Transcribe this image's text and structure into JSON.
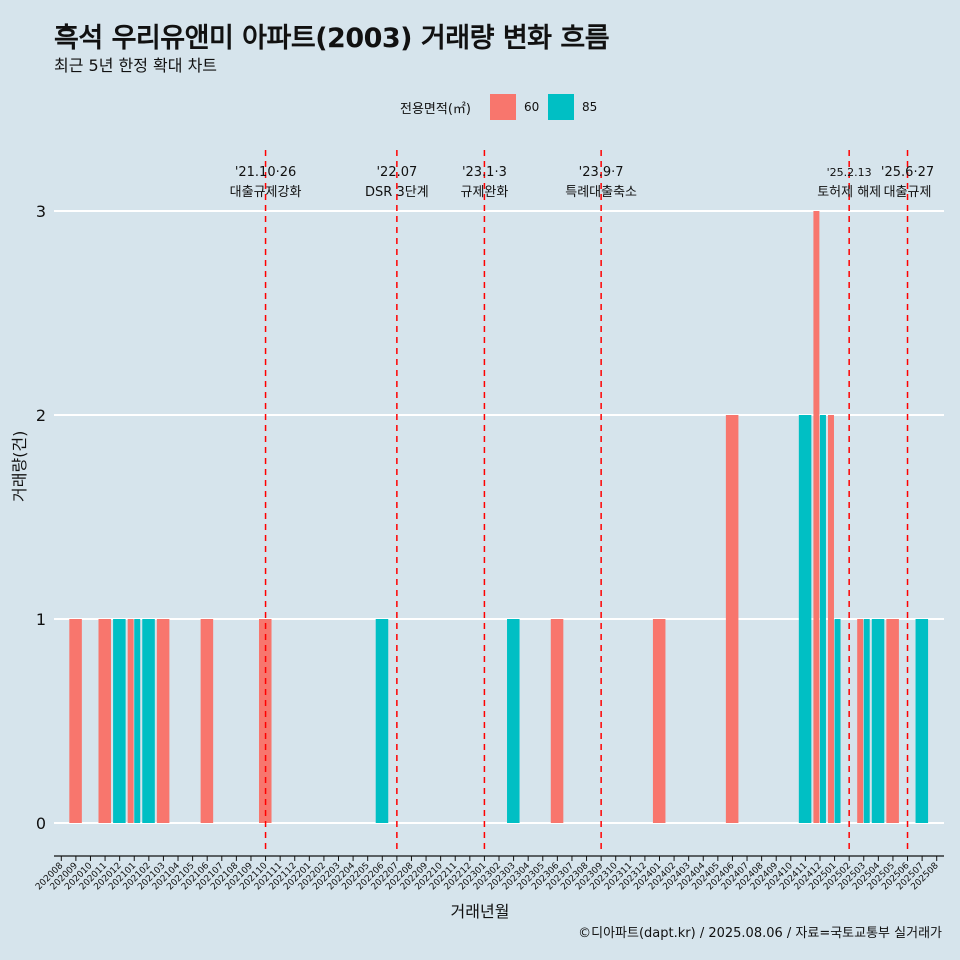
{
  "header": {
    "title": "흑석 우리유앤미 아파트(2003) 거래량 변화 흐름",
    "subtitle": "최근 5년 한정 확대 차트"
  },
  "legend": {
    "title": "전용면적(㎡)",
    "items": [
      {
        "label": "60",
        "color": "#F8766D"
      },
      {
        "label": "85",
        "color": "#00BFC4"
      }
    ]
  },
  "caption": "©디아파트(dapt.kr) / 2025.08.06 / 자료=국토교통부 실거래가",
  "chart_data": {
    "type": "bar",
    "xlabel": "거래년월",
    "ylabel": "거래량(건)",
    "ylim": [
      0,
      3
    ],
    "yticks": [
      0,
      1,
      2,
      3
    ],
    "grid": "horizontal",
    "categories": [
      "202008",
      "202009",
      "202010",
      "202011",
      "202012",
      "202101",
      "202102",
      "202103",
      "202104",
      "202105",
      "202106",
      "202107",
      "202108",
      "202109",
      "202110",
      "202111",
      "202112",
      "202201",
      "202202",
      "202203",
      "202204",
      "202205",
      "202206",
      "202207",
      "202208",
      "202209",
      "202210",
      "202211",
      "202212",
      "202301",
      "202302",
      "202303",
      "202304",
      "202305",
      "202306",
      "202307",
      "202308",
      "202309",
      "202310",
      "202311",
      "202312",
      "202401",
      "202402",
      "202403",
      "202404",
      "202405",
      "202406",
      "202407",
      "202408",
      "202409",
      "202410",
      "202411",
      "202412",
      "202501",
      "202502",
      "202503",
      "202504",
      "202505",
      "202506",
      "202507",
      "202508"
    ],
    "series": [
      {
        "name": "60",
        "color": "#F8766D",
        "values": [
          0,
          1,
          0,
          1,
          0,
          1,
          0,
          1,
          0,
          0,
          1,
          0,
          0,
          0,
          1,
          0,
          0,
          0,
          0,
          0,
          0,
          0,
          0,
          0,
          0,
          0,
          0,
          0,
          0,
          0,
          0,
          0,
          0,
          0,
          1,
          0,
          0,
          0,
          0,
          0,
          0,
          1,
          0,
          0,
          0,
          0,
          2,
          0,
          0,
          0,
          0,
          0,
          3,
          2,
          0,
          1,
          0,
          1,
          0,
          0,
          0
        ]
      },
      {
        "name": "85",
        "color": "#00BFC4",
        "values": [
          0,
          0,
          0,
          0,
          1,
          1,
          1,
          0,
          0,
          0,
          0,
          0,
          0,
          0,
          0,
          0,
          0,
          0,
          0,
          0,
          0,
          0,
          1,
          0,
          0,
          0,
          0,
          0,
          0,
          0,
          0,
          1,
          0,
          0,
          0,
          0,
          0,
          0,
          0,
          0,
          0,
          0,
          0,
          0,
          0,
          0,
          0,
          0,
          0,
          0,
          0,
          2,
          2,
          1,
          0,
          1,
          1,
          0,
          0,
          1,
          0
        ]
      }
    ],
    "events": [
      {
        "month": "202110",
        "date": "'21.10·26",
        "label": "대출규제강화"
      },
      {
        "month": "202207",
        "date": "'22.07",
        "label": "DSR 3단계"
      },
      {
        "month": "202301",
        "date": "'23.1·3",
        "label": "규제완화"
      },
      {
        "month": "202309",
        "date": "'23.9·7",
        "label": "특례대출축소"
      },
      {
        "month": "202502",
        "date": "'25.2.13",
        "label": "토허제 해제"
      },
      {
        "month": "202506",
        "date": "'25.6·27",
        "label": "대출규제"
      }
    ]
  }
}
